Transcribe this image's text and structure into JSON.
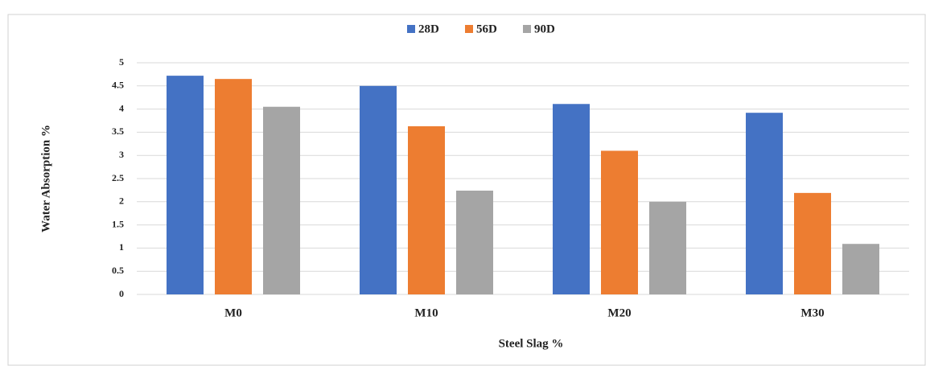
{
  "chart_data": {
    "type": "bar",
    "xlabel": "Steel Slag %",
    "ylabel": "Water Absorption %",
    "categories": [
      "M0",
      "M10",
      "M20",
      "M30"
    ],
    "series": [
      {
        "name": "28D",
        "color": "#4472c4",
        "values": [
          4.72,
          4.5,
          4.11,
          3.92
        ]
      },
      {
        "name": "56D",
        "color": "#ed7d31",
        "values": [
          4.65,
          3.63,
          3.1,
          2.19
        ]
      },
      {
        "name": "90D",
        "color": "#a5a5a5",
        "values": [
          4.05,
          2.24,
          2.0,
          1.09
        ]
      }
    ],
    "ylim": [
      0,
      5
    ],
    "yticks": [
      0,
      0.5,
      1,
      1.5,
      2,
      2.5,
      3,
      3.5,
      4,
      4.5,
      5
    ],
    "grid": true,
    "legend": "top"
  }
}
